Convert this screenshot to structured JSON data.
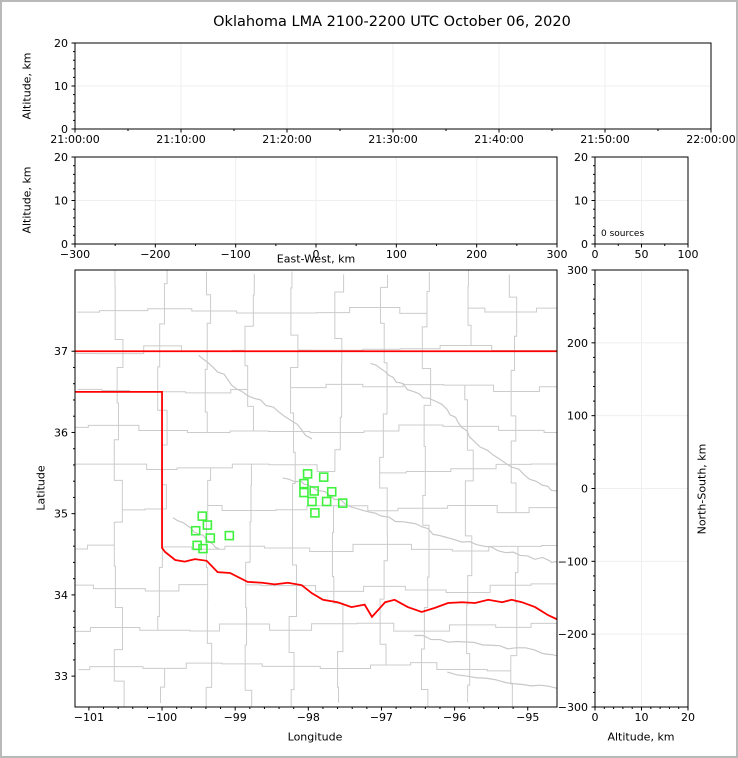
{
  "title": "Oklahoma LMA 2100-2200 UTC October 06, 2020",
  "annotation": {
    "sources_label": "0 sources"
  },
  "axis_labels": {
    "altitude": "Altitude, km",
    "east_west": "East-West, km",
    "latitude": "Latitude",
    "longitude": "Longitude",
    "north_south": "North-South, km"
  },
  "colors": {
    "state_border": "#ff0000",
    "county_line": "#cccccc",
    "river_line": "#c8c8c8",
    "station_marker": "#3ef23e",
    "outer_frame": "#b9b9b9",
    "grid": "#efefef",
    "axis": "#000000"
  },
  "chart_data": {
    "type": "scatter",
    "title": "Oklahoma LMA 2100-2200 UTC October 06, 2020",
    "source_count": 0,
    "panels": [
      {
        "id": "time_altitude",
        "type": "scatter",
        "ylabel": "Altitude, km",
        "xtick_labels": [
          "21:00:00",
          "21:10:00",
          "21:20:00",
          "21:30:00",
          "21:40:00",
          "21:50:00",
          "22:00:00"
        ],
        "ylim": [
          0,
          20
        ],
        "yticks": [
          0,
          10,
          20
        ],
        "points": []
      },
      {
        "id": "eastwest_altitude",
        "type": "scatter",
        "xlabel": "East-West, km",
        "ylabel": "Altitude, km",
        "xlim": [
          -300,
          300
        ],
        "xticks": [
          -300,
          -200,
          -100,
          0,
          100,
          200,
          300
        ],
        "ylim": [
          0,
          20
        ],
        "yticks": [
          0,
          10,
          20
        ],
        "points": []
      },
      {
        "id": "altitude_histogram",
        "type": "line",
        "annotation": "0 sources",
        "xlim": [
          0,
          100
        ],
        "xticks": [
          0,
          50,
          100
        ],
        "ylim": [
          0,
          20
        ],
        "yticks": [
          0,
          10,
          20
        ],
        "points": []
      },
      {
        "id": "plan_view",
        "type": "scatter",
        "xlabel": "Longitude",
        "ylabel": "Latitude",
        "xlim": [
          -101.19,
          -94.6
        ],
        "xticks": [
          -101,
          -100,
          -99,
          -98,
          -97,
          -96,
          -95
        ],
        "ylim": [
          32.62,
          38.0
        ],
        "yticks": [
          33,
          34,
          35,
          36,
          37
        ],
        "stations_lon_lat": [
          [
            -98.01,
            35.49
          ],
          [
            -97.79,
            35.45
          ],
          [
            -98.06,
            35.37
          ],
          [
            -97.92,
            35.28
          ],
          [
            -98.06,
            35.26
          ],
          [
            -97.68,
            35.27
          ],
          [
            -97.95,
            35.15
          ],
          [
            -97.75,
            35.15
          ],
          [
            -97.53,
            35.13
          ],
          [
            -97.91,
            35.01
          ],
          [
            -99.45,
            34.97
          ],
          [
            -99.38,
            34.86
          ],
          [
            -99.54,
            34.79
          ],
          [
            -99.34,
            34.7
          ],
          [
            -99.08,
            34.73
          ],
          [
            -99.52,
            34.61
          ],
          [
            -99.44,
            34.57
          ]
        ],
        "state_border": [
          [
            [
              -101.19,
              37.0
            ],
            [
              -94.6,
              37.0
            ]
          ],
          [
            [
              -101.19,
              36.5
            ],
            [
              -100.0,
              36.5
            ],
            [
              -100.0,
              34.58
            ],
            [
              -99.96,
              34.53
            ],
            [
              -99.82,
              34.43
            ],
            [
              -99.69,
              34.41
            ],
            [
              -99.55,
              34.44
            ],
            [
              -99.39,
              34.42
            ],
            [
              -99.24,
              34.28
            ],
            [
              -99.07,
              34.27
            ],
            [
              -98.83,
              34.16
            ],
            [
              -98.63,
              34.15
            ],
            [
              -98.46,
              34.13
            ],
            [
              -98.28,
              34.15
            ],
            [
              -98.09,
              34.12
            ],
            [
              -97.95,
              34.02
            ],
            [
              -97.8,
              33.94
            ],
            [
              -97.6,
              33.91
            ],
            [
              -97.41,
              33.85
            ],
            [
              -97.23,
              33.88
            ],
            [
              -97.13,
              33.73
            ],
            [
              -96.95,
              33.91
            ],
            [
              -96.82,
              33.94
            ],
            [
              -96.64,
              33.85
            ],
            [
              -96.45,
              33.79
            ],
            [
              -96.27,
              33.84
            ],
            [
              -96.09,
              33.9
            ],
            [
              -95.9,
              33.91
            ],
            [
              -95.72,
              33.9
            ],
            [
              -95.54,
              33.94
            ],
            [
              -95.35,
              33.91
            ],
            [
              -95.22,
              33.94
            ],
            [
              -95.08,
              33.91
            ],
            [
              -94.9,
              33.85
            ],
            [
              -94.72,
              33.75
            ],
            [
              -94.6,
              33.7
            ]
          ]
        ],
        "rivers": [
          [
            [
              -98.35,
              35.44
            ],
            [
              -98.1,
              35.4
            ],
            [
              -97.95,
              35.33
            ],
            [
              -97.7,
              35.22
            ],
            [
              -97.5,
              35.12
            ],
            [
              -97.25,
              35.04
            ],
            [
              -97.0,
              34.97
            ],
            [
              -96.7,
              34.9
            ],
            [
              -96.45,
              34.84
            ],
            [
              -96.2,
              34.73
            ],
            [
              -95.9,
              34.65
            ],
            [
              -95.6,
              34.6
            ],
            [
              -95.3,
              34.52
            ],
            [
              -95.0,
              34.48
            ],
            [
              -94.7,
              34.42
            ],
            [
              -94.6,
              34.4
            ]
          ],
          [
            [
              -97.15,
              36.85
            ],
            [
              -96.95,
              36.75
            ],
            [
              -96.8,
              36.62
            ],
            [
              -96.55,
              36.5
            ],
            [
              -96.35,
              36.42
            ],
            [
              -96.1,
              36.28
            ],
            [
              -95.95,
              36.12
            ],
            [
              -95.8,
              35.95
            ],
            [
              -95.55,
              35.78
            ],
            [
              -95.3,
              35.62
            ],
            [
              -95.05,
              35.48
            ],
            [
              -94.8,
              35.35
            ],
            [
              -94.6,
              35.28
            ]
          ],
          [
            [
              -96.55,
              33.5
            ],
            [
              -96.2,
              33.45
            ],
            [
              -95.85,
              33.42
            ],
            [
              -95.5,
              33.38
            ],
            [
              -95.15,
              33.35
            ],
            [
              -94.8,
              33.28
            ],
            [
              -94.6,
              33.25
            ]
          ],
          [
            [
              -96.1,
              33.05
            ],
            [
              -95.7,
              32.98
            ],
            [
              -95.3,
              32.92
            ],
            [
              -94.95,
              32.88
            ],
            [
              -94.6,
              32.85
            ]
          ],
          [
            [
              -99.85,
              34.95
            ],
            [
              -99.65,
              34.85
            ],
            [
              -99.5,
              34.75
            ],
            [
              -99.35,
              34.65
            ],
            [
              -99.22,
              34.57
            ]
          ],
          [
            [
              -99.5,
              36.95
            ],
            [
              -99.3,
              36.8
            ],
            [
              -99.1,
              36.65
            ],
            [
              -98.9,
              36.5
            ],
            [
              -98.65,
              36.4
            ],
            [
              -98.4,
              36.25
            ],
            [
              -98.15,
              36.1
            ],
            [
              -97.95,
              35.92
            ]
          ]
        ]
      },
      {
        "id": "northsouth_altitude",
        "type": "scatter",
        "xlabel": "Altitude, km",
        "ylabel_right": "North-South, km",
        "xlim": [
          0,
          20
        ],
        "xticks": [
          0,
          10,
          20
        ],
        "ylim": [
          -300,
          300
        ],
        "yticks": [
          -300,
          -200,
          -100,
          0,
          100,
          200,
          300
        ],
        "points": []
      }
    ]
  }
}
